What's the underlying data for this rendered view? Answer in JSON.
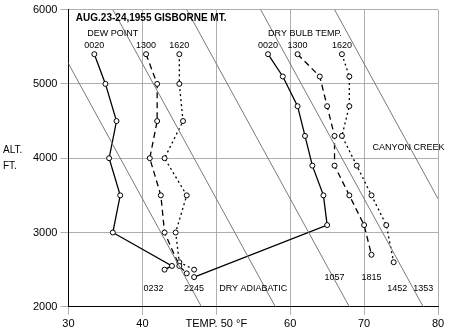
{
  "chart_data": {
    "type": "line",
    "title": "AUG.23-24,1955 GISBORNE MT.",
    "title_position": [
      31,
      5880
    ],
    "y_label": [
      "ALT.",
      "FT."
    ],
    "xlim": [
      30,
      80
    ],
    "xticks": [
      30,
      40,
      {
        "value": 50,
        "label": "TEMP. 50 °F"
      },
      60,
      70,
      80
    ],
    "ylim": [
      2000,
      6000
    ],
    "yticks": [
      2000,
      3000,
      4000,
      5000,
      6000
    ],
    "grid": true,
    "dry_adiabats": [
      [
        [
          48,
          2000
        ],
        [
          26,
          6000
        ]
      ],
      [
        [
          58,
          2000
        ],
        [
          36,
          6000
        ]
      ],
      [
        [
          68,
          2000
        ],
        [
          46,
          6000
        ]
      ],
      [
        [
          78,
          2000
        ],
        [
          56,
          6000
        ]
      ],
      [
        [
          88,
          2000
        ],
        [
          66,
          6000
        ]
      ]
    ],
    "series": [
      {
        "name": "0020",
        "color": "#000000",
        "line_style": "solid",
        "marker": "circle",
        "x": [
          33.5,
          35,
          36.5,
          35.5,
          37,
          36,
          44,
          43
        ],
        "values": [
          5400,
          5000,
          4500,
          4000,
          3500,
          3000,
          2550,
          2500
        ]
      },
      {
        "name": "1300",
        "color": "#000000",
        "line_style": "dashed",
        "marker": "circle",
        "x": [
          40.5,
          42,
          42,
          41,
          42.5,
          43,
          45,
          46
        ],
        "values": [
          5400,
          5000,
          4500,
          4000,
          3500,
          3000,
          2550,
          2450
        ]
      },
      {
        "name": "1620",
        "color": "#000000",
        "line_style": "dotted",
        "marker": "circle",
        "x": [
          45,
          45,
          45.5,
          43,
          46,
          44.5,
          45,
          47
        ],
        "values": [
          5400,
          5000,
          4500,
          4000,
          3500,
          3000,
          2600,
          2500
        ]
      },
      {
        "name": "0020",
        "color": "#000000",
        "line_style": "solid",
        "marker": "circle",
        "x": [
          57,
          59,
          61,
          62,
          63,
          64.5,
          65,
          47
        ],
        "values": [
          5400,
          5100,
          4700,
          4300,
          3900,
          3500,
          3100,
          2400
        ]
      },
      {
        "name": "1300",
        "color": "#000000",
        "line_style": "dashed",
        "marker": "circle",
        "x": [
          61,
          64,
          65,
          66,
          66,
          68,
          70,
          71
        ],
        "values": [
          5400,
          5100,
          4700,
          4300,
          3900,
          3500,
          3100,
          2700
        ]
      },
      {
        "name": "1620",
        "color": "#000000",
        "line_style": "dotted",
        "marker": "circle",
        "x": [
          67,
          68,
          68,
          67,
          69,
          71,
          73,
          74
        ],
        "values": [
          5400,
          5100,
          4700,
          4300,
          3900,
          3500,
          3100,
          2600
        ]
      }
    ],
    "annotations": [
      {
        "text": "DEW POINT",
        "x": 36,
        "y": 5680
      },
      {
        "text": "DRY BULB TEMP.",
        "x": 62,
        "y": 5680
      },
      {
        "text": "CANYON CREEK",
        "x": 76,
        "y": 4150
      },
      {
        "text": "DRY ADIABATIC",
        "x": 55,
        "y": 2250
      },
      {
        "text": "0232",
        "x": 41.5,
        "y": 2250
      },
      {
        "text": "2245",
        "x": 47,
        "y": 2250
      },
      {
        "text": "1057",
        "x": 66,
        "y": 2400
      },
      {
        "text": "1815",
        "x": 71,
        "y": 2400
      },
      {
        "text": "1452",
        "x": 74.5,
        "y": 2250
      },
      {
        "text": "1353",
        "x": 78,
        "y": 2250
      }
    ]
  }
}
